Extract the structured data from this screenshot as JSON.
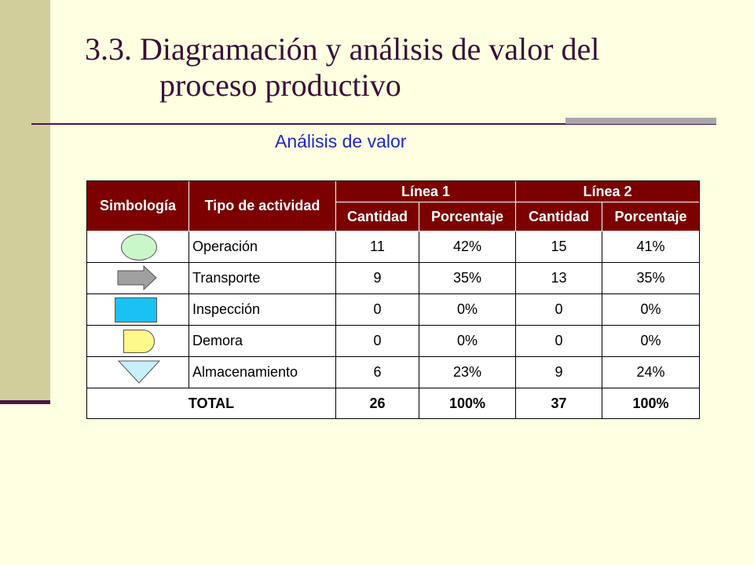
{
  "title": {
    "line1": "3.3. Diagramación y análisis de valor del",
    "line2": "proceso productivo"
  },
  "subtitle": "Análisis de valor",
  "colors": {
    "header_bg": "#7C0000",
    "title_text": "#3B0F38",
    "subtitle_text": "#1B28CC",
    "background": "#FFFFE1",
    "sidebar": "#D2CE9C"
  },
  "table": {
    "headers": {
      "simbologia": "Simbología",
      "tipo": "Tipo de actividad",
      "linea1": "Línea 1",
      "linea2": "Línea 2",
      "cantidad": "Cantidad",
      "porcentaje": "Porcentaje"
    },
    "rows": [
      {
        "symbol": "operation-circle-icon",
        "activity": "Operación",
        "l1_qty": "11",
        "l1_pct": "42%",
        "l2_qty": "15",
        "l2_pct": "41%"
      },
      {
        "symbol": "transport-arrow-icon",
        "activity": "Transporte",
        "l1_qty": "9",
        "l1_pct": "35%",
        "l2_qty": "13",
        "l2_pct": "35%"
      },
      {
        "symbol": "inspection-square-icon",
        "activity": "Inspección",
        "l1_qty": "0",
        "l1_pct": "0%",
        "l2_qty": "0",
        "l2_pct": "0%"
      },
      {
        "symbol": "delay-d-icon",
        "activity": "Demora",
        "l1_qty": "0",
        "l1_pct": "0%",
        "l2_qty": "0",
        "l2_pct": "0%"
      },
      {
        "symbol": "storage-triangle-icon",
        "activity": "Almacenamiento",
        "l1_qty": "6",
        "l1_pct": "23%",
        "l2_qty": "9",
        "l2_pct": "24%"
      }
    ],
    "total": {
      "label": "TOTAL",
      "l1_qty": "26",
      "l1_pct": "100%",
      "l2_qty": "37",
      "l2_pct": "100%"
    }
  }
}
